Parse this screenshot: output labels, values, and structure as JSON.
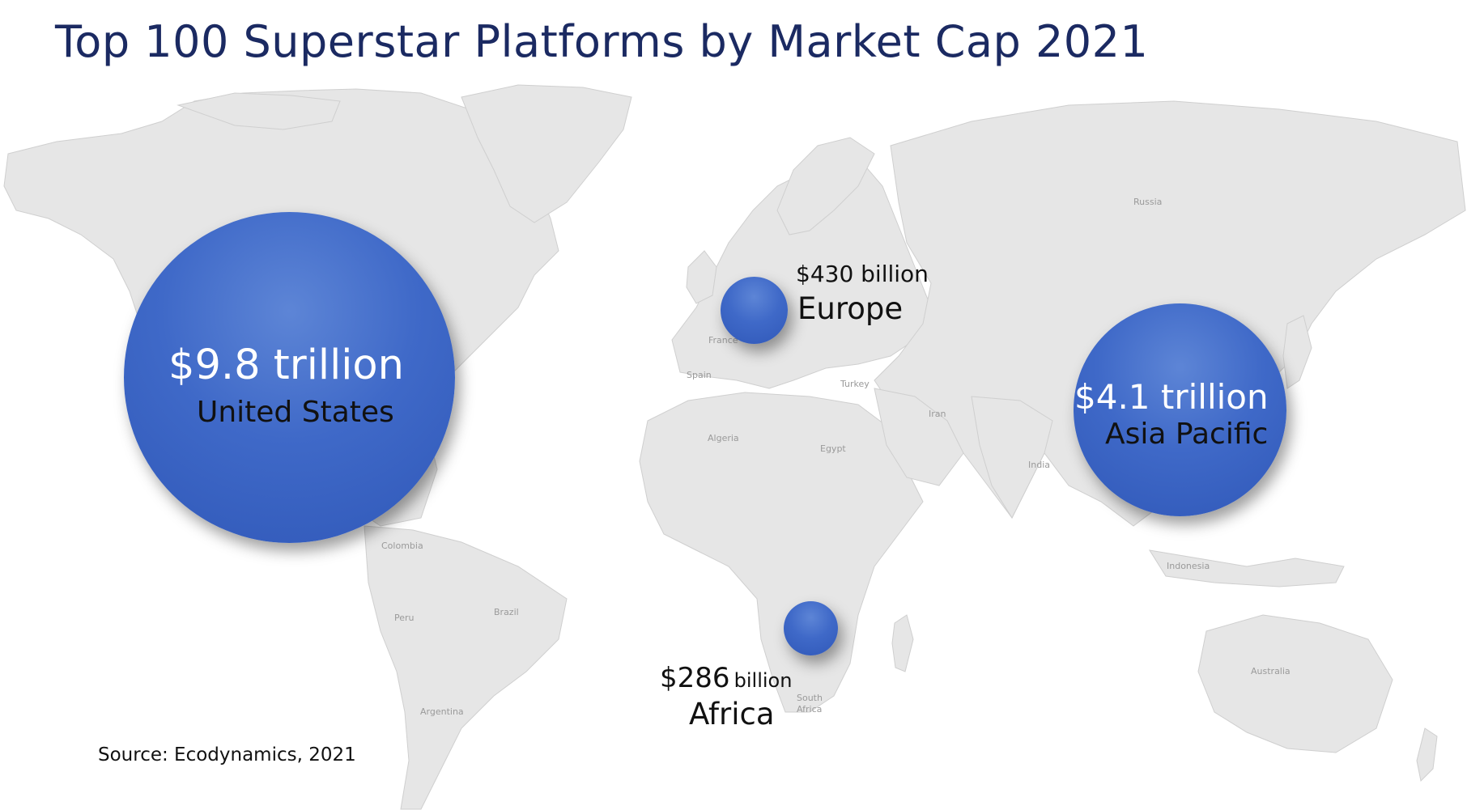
{
  "title": "Top 100 Superstar Platforms by Market Cap 2021",
  "colors": {
    "title": "#1b2a62",
    "bubble": "#3f69c8",
    "land": "#e6e6e6"
  },
  "regions": {
    "us": {
      "value": "$9.8 trillion",
      "name": "United States",
      "market_cap_usd_billion": 9800
    },
    "europe": {
      "value": "$430 billion",
      "name": "Europe",
      "market_cap_usd_billion": 430
    },
    "asia": {
      "value": "$4.1 trillion",
      "name": "Asia Pacific",
      "market_cap_usd_billion": 4100
    },
    "africa": {
      "value_amount": "$286",
      "value_unit": "billion",
      "name": "Africa",
      "market_cap_usd_billion": 286
    }
  },
  "country_labels": {
    "russia": "Russia",
    "france": "France",
    "spain": "Spain",
    "turkey": "Turkey",
    "iran": "Iran",
    "algeria": "Algeria",
    "egypt": "Egypt",
    "india": "India",
    "indonesia": "Indonesia",
    "australia": "Australia",
    "colombia": "Colombia",
    "peru": "Peru",
    "brazil": "Brazil",
    "argentina": "Argentina",
    "south_africa_1": "South",
    "south_africa_2": "Africa"
  },
  "source": "Source: Ecodynamics, 2021"
}
